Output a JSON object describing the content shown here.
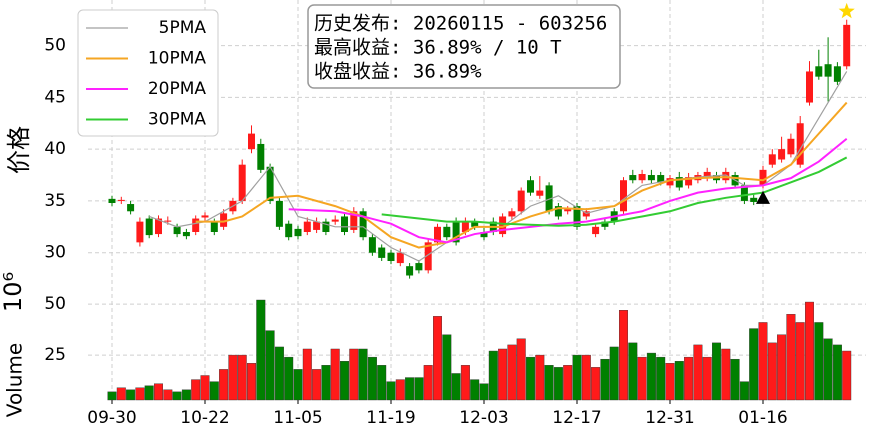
{
  "chart_data": {
    "type": "candlestick",
    "annotation": [
      "历史发布: 20260115 - 603256",
      "最高收益: 36.89% / 10 T",
      "收盘收益: 36.89%"
    ],
    "ylabel": "价格",
    "categories": [
      "09-30",
      null,
      null,
      null,
      null,
      null,
      null,
      null,
      null,
      null,
      "10-22",
      null,
      null,
      null,
      null,
      null,
      null,
      null,
      null,
      null,
      "11-05",
      null,
      null,
      null,
      null,
      null,
      null,
      null,
      null,
      null,
      "11-19",
      null,
      null,
      null,
      null,
      null,
      null,
      null,
      null,
      null,
      "12-03",
      null,
      null,
      null,
      null,
      null,
      null,
      null,
      null,
      null,
      "12-17",
      null,
      null,
      null,
      null,
      null,
      null,
      null,
      null,
      null,
      "12-31",
      null,
      null,
      null,
      null,
      null,
      null,
      null,
      null,
      null,
      "01-16",
      null,
      null,
      null,
      null,
      null,
      null,
      null,
      null,
      null
    ],
    "open": [
      35.2,
      35.0,
      34.7,
      31.0,
      33.3,
      31.8,
      33.0,
      32.5,
      32.0,
      32.0,
      33.4,
      33.0,
      32.5,
      34.0,
      35.0,
      40.0,
      40.5,
      38.3,
      35.0,
      32.8,
      32.3,
      32.0,
      32.2,
      33.0,
      33.0,
      33.5,
      32.2,
      34.0,
      31.5,
      30.5,
      30.0,
      29.0,
      28.7,
      29.0,
      28.3,
      31.0,
      32.5,
      33.0,
      32.0,
      33.0,
      32.0,
      33.0,
      31.8,
      33.5,
      34.0,
      37.0,
      35.5,
      36.5,
      34.5,
      34.0,
      34.5,
      33.5,
      31.8,
      33.0,
      34.0,
      34.0,
      37.5,
      37.0,
      37.5,
      37.5,
      36.5,
      37.3,
      36.5,
      37.0,
      37.2,
      37.5,
      37.0,
      37.5,
      36.5,
      35.3,
      36.5,
      38.5,
      39.0,
      39.5,
      38.5,
      44.5,
      48.0,
      48.2,
      48.0,
      48.0
    ],
    "high": [
      35.5,
      35.4,
      35.0,
      33.4,
      33.6,
      33.6,
      33.5,
      32.8,
      32.3,
      33.6,
      33.9,
      33.3,
      34.2,
      35.3,
      39.0,
      42.3,
      41.0,
      38.6,
      35.3,
      33.1,
      32.6,
      33.4,
      33.4,
      33.3,
      33.6,
      33.8,
      34.4,
      34.3,
      31.8,
      30.8,
      30.3,
      30.4,
      29.0,
      29.3,
      31.3,
      32.8,
      32.8,
      33.4,
      33.4,
      33.3,
      32.4,
      33.4,
      33.8,
      34.3,
      36.3,
      37.4,
      37.4,
      36.8,
      34.8,
      34.5,
      34.8,
      34.3,
      32.8,
      33.3,
      34.3,
      37.3,
      38.0,
      38.0,
      38.0,
      37.8,
      37.5,
      37.8,
      37.7,
      37.8,
      38.2,
      37.8,
      38.2,
      37.8,
      36.8,
      35.6,
      38.4,
      40.0,
      41.2,
      41.5,
      43.2,
      48.5,
      49.6,
      50.8,
      48.4,
      52.5
    ],
    "low": [
      34.5,
      34.7,
      33.7,
      30.6,
      31.4,
      31.5,
      32.7,
      31.5,
      31.3,
      31.7,
      33.1,
      31.7,
      32.2,
      33.7,
      34.7,
      39.6,
      37.7,
      34.7,
      32.2,
      31.2,
      31.3,
      31.7,
      31.9,
      31.7,
      32.7,
      31.7,
      31.9,
      31.2,
      29.7,
      29.2,
      28.9,
      28.7,
      27.5,
      28.0,
      28.0,
      30.7,
      31.2,
      30.7,
      31.7,
      32.2,
      31.2,
      31.7,
      31.5,
      33.2,
      33.7,
      35.5,
      35.2,
      33.7,
      33.2,
      33.7,
      32.2,
      33.2,
      31.5,
      32.2,
      32.7,
      33.7,
      36.7,
      36.7,
      36.7,
      36.5,
      36.2,
      36.0,
      36.2,
      36.7,
      36.9,
      36.7,
      36.7,
      36.2,
      34.7,
      34.6,
      36.2,
      38.2,
      38.7,
      39.2,
      38.2,
      44.2,
      46.7,
      44.6,
      46.2,
      47.7
    ],
    "close": [
      34.8,
      35.1,
      34.0,
      33.0,
      31.7,
      33.3,
      33.1,
      31.8,
      31.6,
      33.3,
      33.6,
      32.0,
      33.8,
      35.0,
      38.5,
      41.5,
      38.0,
      35.0,
      32.5,
      31.5,
      31.6,
      33.0,
      33.0,
      32.0,
      33.2,
      32.0,
      34.0,
      31.5,
      30.0,
      29.5,
      29.2,
      30.0,
      27.8,
      28.3,
      31.0,
      32.5,
      31.5,
      31.0,
      33.0,
      32.5,
      31.5,
      32.0,
      33.5,
      34.0,
      36.0,
      35.8,
      36.0,
      34.0,
      33.5,
      34.2,
      32.5,
      34.0,
      32.5,
      32.5,
      33.0,
      37.0,
      37.0,
      37.6,
      37.0,
      36.8,
      37.2,
      36.3,
      37.3,
      37.5,
      37.8,
      37.0,
      37.8,
      36.5,
      35.0,
      34.9,
      38.0,
      39.5,
      40.0,
      41.0,
      42.5,
      47.5,
      47.0,
      47.0,
      46.5,
      52.0
    ],
    "up_color": "#ff1a1a",
    "down_color": "#008000",
    "ylim": [
      26.4,
      54.4
    ],
    "yticks": [
      30,
      35,
      40,
      45,
      50
    ],
    "grid": true,
    "legend": "upper left",
    "series": [
      {
        "name": "5PMA",
        "color": "#a0a0a0",
        "x": [
          4,
          7,
          10,
          14,
          17,
          20,
          24,
          27,
          30,
          33,
          36,
          39,
          42,
          45,
          48,
          51,
          54,
          57,
          60,
          63,
          66,
          68,
          70,
          73,
          76,
          79
        ],
        "values": [
          33.5,
          32.5,
          33.0,
          35.0,
          38.3,
          33.5,
          32.5,
          32.5,
          30.5,
          29.2,
          31.0,
          32.5,
          32.5,
          34.5,
          35.5,
          33.8,
          34.5,
          36.5,
          37.0,
          37.3,
          37.5,
          36.5,
          36.5,
          38.5,
          43.0,
          47.5
        ]
      },
      {
        "name": "10PMA",
        "color": "#f5a623",
        "x": [
          9,
          12,
          14,
          17,
          20,
          24,
          27,
          30,
          33,
          36,
          39,
          42,
          45,
          48,
          51,
          54,
          57,
          60,
          63,
          66,
          70,
          73,
          76,
          79
        ],
        "values": [
          33.0,
          33.0,
          33.5,
          35.3,
          35.5,
          34.5,
          33.5,
          31.5,
          30.5,
          31.0,
          32.5,
          32.5,
          33.5,
          34.3,
          34.2,
          34.5,
          36.0,
          37.0,
          37.2,
          37.3,
          37.0,
          38.5,
          41.5,
          44.5
        ]
      },
      {
        "name": "20PMA",
        "color": "#ff22ff",
        "x": [
          19,
          24,
          27,
          30,
          33,
          36,
          39,
          42,
          45,
          48,
          51,
          54,
          57,
          60,
          63,
          66,
          70,
          73,
          76,
          79
        ],
        "values": [
          34.2,
          34.0,
          33.5,
          32.8,
          31.5,
          31.0,
          31.8,
          32.2,
          32.5,
          32.8,
          33.0,
          33.5,
          34.0,
          35.0,
          35.8,
          36.2,
          36.5,
          37.2,
          38.8,
          41.0
        ]
      },
      {
        "name": "30PMA",
        "color": "#33cc33",
        "x": [
          29,
          33,
          36,
          39,
          42,
          45,
          48,
          51,
          54,
          57,
          60,
          63,
          66,
          70,
          73,
          76,
          79
        ],
        "values": [
          33.7,
          33.3,
          33.0,
          33.0,
          32.8,
          32.7,
          32.6,
          32.7,
          33.0,
          33.5,
          34.0,
          34.8,
          35.3,
          35.8,
          36.8,
          37.8,
          39.2
        ]
      }
    ],
    "markers": [
      {
        "x": 70,
        "y": 35.3,
        "shape": "triangle",
        "color": "#000000"
      },
      {
        "x": 79,
        "y": 53.3,
        "shape": "star",
        "color": "#ffd700"
      }
    ],
    "volume": {
      "ylabel": "Volume",
      "scale_label": "10⁶",
      "ylim": [
        3,
        56.9
      ],
      "yticks": [
        25,
        50
      ],
      "values": [
        7,
        9,
        8,
        9,
        10,
        11,
        8,
        7,
        8,
        13,
        15,
        12,
        18,
        25,
        25,
        21,
        52,
        37,
        29,
        24,
        18,
        28,
        18,
        20,
        28,
        22,
        28,
        28,
        24,
        20,
        12,
        13,
        14,
        14,
        20,
        44,
        35,
        16,
        20,
        13,
        11,
        27,
        28,
        30,
        33,
        24,
        25,
        20,
        19,
        20,
        25,
        25,
        19,
        23,
        29,
        47,
        31,
        24,
        26,
        24,
        21,
        22,
        24,
        30,
        24,
        31,
        28,
        23,
        12,
        38,
        41,
        31,
        35,
        45,
        41,
        51,
        41,
        33,
        30,
        27
      ]
    }
  }
}
